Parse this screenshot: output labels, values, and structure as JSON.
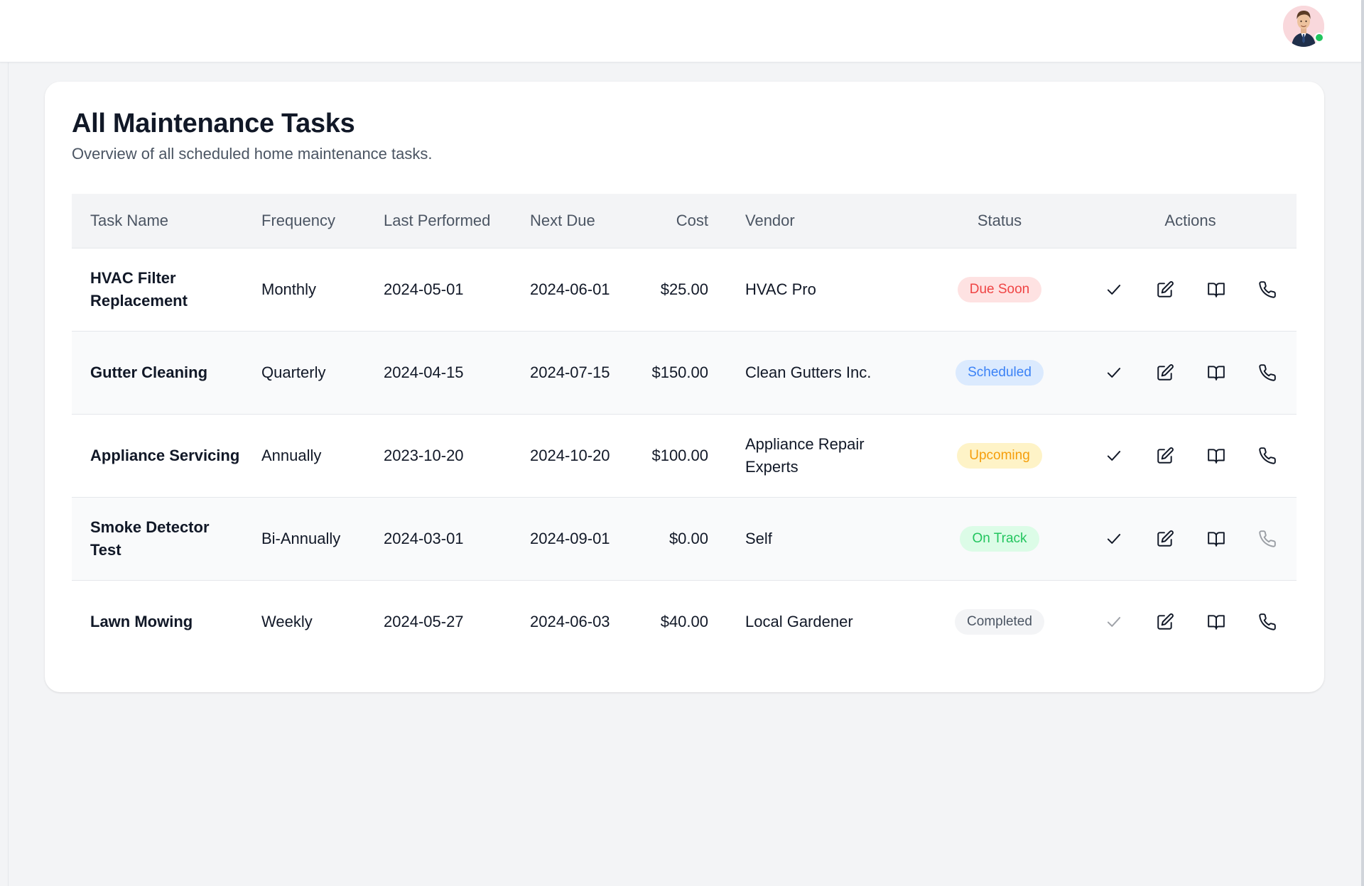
{
  "header": {
    "avatar_alt": "User avatar"
  },
  "page": {
    "title": "All Maintenance Tasks",
    "subtitle": "Overview of all scheduled home maintenance tasks."
  },
  "table": {
    "columns": {
      "task_name": "Task Name",
      "frequency": "Frequency",
      "last_performed": "Last Performed",
      "next_due": "Next Due",
      "cost": "Cost",
      "vendor": "Vendor",
      "status": "Status",
      "actions": "Actions"
    },
    "rows": [
      {
        "task_name": "HVAC Filter Replacement",
        "frequency": "Monthly",
        "last_performed": "2024-05-01",
        "next_due": "2024-06-01",
        "cost": "$25.00",
        "vendor": "HVAC Pro",
        "status": "Due Soon",
        "status_color": "#ef4444",
        "status_bg": "#fee2e2",
        "complete_enabled": true,
        "call_enabled": true
      },
      {
        "task_name": "Gutter Cleaning",
        "frequency": "Quarterly",
        "last_performed": "2024-04-15",
        "next_due": "2024-07-15",
        "cost": "$150.00",
        "vendor": "Clean Gutters Inc.",
        "status": "Scheduled",
        "status_color": "#3b82f6",
        "status_bg": "#dbeafe",
        "complete_enabled": true,
        "call_enabled": true
      },
      {
        "task_name": "Appliance Servicing",
        "frequency": "Annually",
        "last_performed": "2023-10-20",
        "next_due": "2024-10-20",
        "cost": "$100.00",
        "vendor": "Appliance Repair Experts",
        "status": "Upcoming",
        "status_color": "#f59e0b",
        "status_bg": "#fef3c7",
        "complete_enabled": true,
        "call_enabled": true
      },
      {
        "task_name": "Smoke Detector Test",
        "frequency": "Bi-Annually",
        "last_performed": "2024-03-01",
        "next_due": "2024-09-01",
        "cost": "$0.00",
        "vendor": "Self",
        "status": "On Track",
        "status_color": "#22c55e",
        "status_bg": "#dcfce7",
        "complete_enabled": true,
        "call_enabled": false
      },
      {
        "task_name": "Lawn Mowing",
        "frequency": "Weekly",
        "last_performed": "2024-05-27",
        "next_due": "2024-06-03",
        "cost": "$40.00",
        "vendor": "Local Gardener",
        "status": "Completed",
        "status_color": "#4b5563",
        "status_bg": "#f3f4f6",
        "complete_enabled": false,
        "call_enabled": true
      }
    ]
  },
  "icons": {
    "complete": "check-icon",
    "edit": "edit-icon",
    "manual": "book-icon",
    "call": "phone-icon"
  }
}
